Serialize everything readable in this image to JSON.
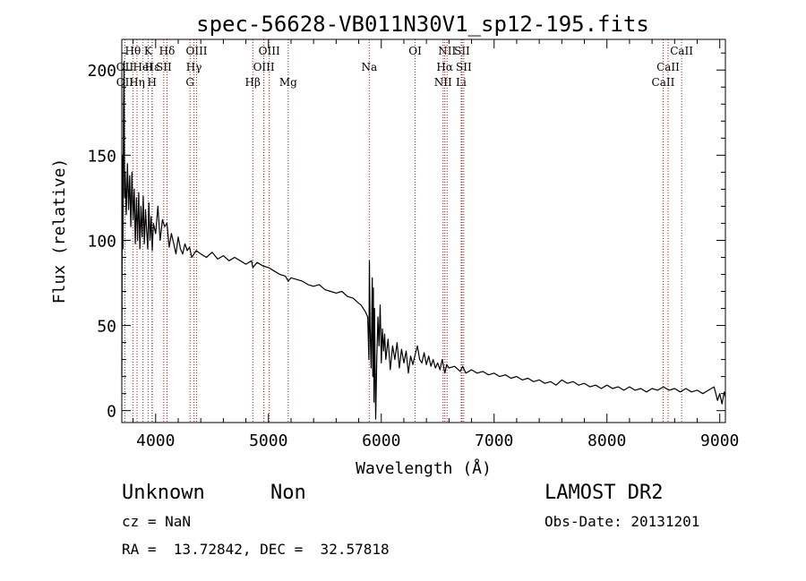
{
  "chart_data": {
    "type": "line",
    "title": "spec-56628-VB011N30V1_sp12-195.fits",
    "xlabel": "Wavelength (Å)",
    "ylabel": "Flux (relative)",
    "xlim": [
      3700,
      9050
    ],
    "ylim": [
      -7,
      218
    ],
    "xticks": [
      4000,
      5000,
      6000,
      7000,
      8000,
      9000
    ],
    "yticks": [
      0,
      50,
      100,
      150,
      200
    ],
    "grid": false,
    "series": [
      {
        "color": "#000000",
        "points": [
          [
            3700,
            20
          ],
          [
            3705,
            150
          ],
          [
            3710,
            95
          ],
          [
            3715,
            175
          ],
          [
            3720,
            205
          ],
          [
            3725,
            125
          ],
          [
            3730,
            140
          ],
          [
            3740,
            115
          ],
          [
            3750,
            145
          ],
          [
            3760,
            118
          ],
          [
            3770,
            138
          ],
          [
            3780,
            108
          ],
          [
            3790,
            140
          ],
          [
            3800,
            112
          ],
          [
            3810,
            130
          ],
          [
            3820,
            98
          ],
          [
            3830,
            125
          ],
          [
            3840,
            100
          ],
          [
            3850,
            128
          ],
          [
            3860,
            95
          ],
          [
            3870,
            120
          ],
          [
            3880,
            102
          ],
          [
            3890,
            126
          ],
          [
            3900,
            98
          ],
          [
            3910,
            118
          ],
          [
            3920,
            106
          ],
          [
            3930,
            95
          ],
          [
            3940,
            122
          ],
          [
            3950,
            100
          ],
          [
            3960,
            114
          ],
          [
            3970,
            94
          ],
          [
            3980,
            110
          ],
          [
            4000,
            104
          ],
          [
            4020,
            120
          ],
          [
            4040,
            100
          ],
          [
            4060,
            112
          ],
          [
            4080,
            108
          ],
          [
            4100,
            110
          ],
          [
            4120,
            96
          ],
          [
            4140,
            104
          ],
          [
            4160,
            98
          ],
          [
            4180,
            92
          ],
          [
            4200,
            102
          ],
          [
            4220,
            95
          ],
          [
            4240,
            92
          ],
          [
            4260,
            98
          ],
          [
            4280,
            94
          ],
          [
            4300,
            96
          ],
          [
            4320,
            90
          ],
          [
            4340,
            92
          ],
          [
            4360,
            94
          ],
          [
            4400,
            92
          ],
          [
            4450,
            90
          ],
          [
            4500,
            93
          ],
          [
            4550,
            89
          ],
          [
            4600,
            91
          ],
          [
            4650,
            88
          ],
          [
            4700,
            90
          ],
          [
            4750,
            88
          ],
          [
            4800,
            86
          ],
          [
            4850,
            88
          ],
          [
            4861,
            84
          ],
          [
            4900,
            87
          ],
          [
            4950,
            85
          ],
          [
            5000,
            84
          ],
          [
            5050,
            82
          ],
          [
            5100,
            80
          ],
          [
            5150,
            79
          ],
          [
            5175,
            76
          ],
          [
            5200,
            78
          ],
          [
            5250,
            77
          ],
          [
            5300,
            76
          ],
          [
            5350,
            74
          ],
          [
            5400,
            73
          ],
          [
            5450,
            74
          ],
          [
            5500,
            71
          ],
          [
            5550,
            70
          ],
          [
            5600,
            69
          ],
          [
            5650,
            70
          ],
          [
            5700,
            67
          ],
          [
            5750,
            66
          ],
          [
            5800,
            63
          ],
          [
            5820,
            62
          ],
          [
            5840,
            60
          ],
          [
            5860,
            58
          ],
          [
            5880,
            55
          ],
          [
            5890,
            30
          ],
          [
            5895,
            88
          ],
          [
            5900,
            50
          ],
          [
            5910,
            25
          ],
          [
            5920,
            78
          ],
          [
            5925,
            20
          ],
          [
            5930,
            72
          ],
          [
            5935,
            5
          ],
          [
            5940,
            60
          ],
          [
            5950,
            -5
          ],
          [
            5960,
            30
          ],
          [
            5970,
            55
          ],
          [
            5980,
            38
          ],
          [
            5990,
            62
          ],
          [
            6000,
            28
          ],
          [
            6010,
            48
          ],
          [
            6020,
            35
          ],
          [
            6030,
            45
          ],
          [
            6040,
            30
          ],
          [
            6060,
            42
          ],
          [
            6080,
            24
          ],
          [
            6100,
            38
          ],
          [
            6120,
            30
          ],
          [
            6140,
            40
          ],
          [
            6160,
            25
          ],
          [
            6180,
            36
          ],
          [
            6200,
            28
          ],
          [
            6220,
            35
          ],
          [
            6240,
            22
          ],
          [
            6260,
            32
          ],
          [
            6280,
            27
          ],
          [
            6300,
            33
          ],
          [
            6320,
            38
          ],
          [
            6340,
            30
          ],
          [
            6360,
            28
          ],
          [
            6380,
            34
          ],
          [
            6400,
            27
          ],
          [
            6420,
            32
          ],
          [
            6440,
            26
          ],
          [
            6460,
            30
          ],
          [
            6480,
            25
          ],
          [
            6500,
            28
          ],
          [
            6520,
            24
          ],
          [
            6540,
            30
          ],
          [
            6563,
            22
          ],
          [
            6580,
            27
          ],
          [
            6600,
            25
          ],
          [
            6650,
            26
          ],
          [
            6700,
            23
          ],
          [
            6720,
            26
          ],
          [
            6750,
            22
          ],
          [
            6800,
            24
          ],
          [
            6850,
            22
          ],
          [
            6900,
            23
          ],
          [
            6950,
            21
          ],
          [
            7000,
            22
          ],
          [
            7050,
            20
          ],
          [
            7100,
            21
          ],
          [
            7150,
            19
          ],
          [
            7200,
            20
          ],
          [
            7250,
            18
          ],
          [
            7300,
            19
          ],
          [
            7350,
            17
          ],
          [
            7400,
            18
          ],
          [
            7450,
            16
          ],
          [
            7500,
            17
          ],
          [
            7550,
            15
          ],
          [
            7600,
            18
          ],
          [
            7650,
            16
          ],
          [
            7700,
            17
          ],
          [
            7750,
            15
          ],
          [
            7800,
            16
          ],
          [
            7850,
            14
          ],
          [
            7900,
            15
          ],
          [
            7950,
            13
          ],
          [
            8000,
            15
          ],
          [
            8050,
            13
          ],
          [
            8100,
            14
          ],
          [
            8150,
            12
          ],
          [
            8200,
            14
          ],
          [
            8250,
            12
          ],
          [
            8300,
            13
          ],
          [
            8350,
            11
          ],
          [
            8400,
            13
          ],
          [
            8450,
            12
          ],
          [
            8500,
            14
          ],
          [
            8550,
            12
          ],
          [
            8600,
            13
          ],
          [
            8650,
            11
          ],
          [
            8700,
            13
          ],
          [
            8750,
            11
          ],
          [
            8800,
            12
          ],
          [
            8850,
            10
          ],
          [
            8900,
            12
          ],
          [
            8950,
            14
          ],
          [
            8980,
            6
          ],
          [
            9000,
            10
          ],
          [
            9020,
            4
          ],
          [
            9040,
            11
          ],
          [
            9050,
            8
          ]
        ]
      }
    ],
    "line_markers": [
      {
        "label": "Hθ",
        "wl": 3798,
        "row": 0
      },
      {
        "label": "OII",
        "wl": 3727,
        "row": 1
      },
      {
        "label": "OII",
        "wl": 3727,
        "row": 2
      },
      {
        "label": "Hε",
        "wl": 3970,
        "row": 1
      },
      {
        "label": "Hη",
        "wl": 3835,
        "row": 2
      },
      {
        "label": "K",
        "wl": 3933,
        "row": 0
      },
      {
        "label": "HeI",
        "wl": 3888,
        "row": 1
      },
      {
        "label": "H",
        "wl": 3968,
        "row": 2
      },
      {
        "label": "Hδ",
        "wl": 4101,
        "row": 0
      },
      {
        "label": "SII",
        "wl": 4072,
        "row": 1
      },
      {
        "label": "OIII",
        "wl": 4363,
        "row": 0
      },
      {
        "label": "Hγ",
        "wl": 4340,
        "row": 1
      },
      {
        "label": "G",
        "wl": 4305,
        "row": 2
      },
      {
        "label": "Hβ",
        "wl": 4861,
        "row": 2
      },
      {
        "label": "OIII",
        "wl": 5007,
        "row": 0
      },
      {
        "label": "OIII",
        "wl": 4959,
        "row": 1
      },
      {
        "label": "Mg",
        "wl": 5175,
        "row": 2
      },
      {
        "label": "Na",
        "wl": 5893,
        "row": 1
      },
      {
        "label": "OI",
        "wl": 6300,
        "row": 0
      },
      {
        "label": "NII",
        "wl": 6583,
        "row": 0
      },
      {
        "label": "SII",
        "wl": 6716,
        "row": 0
      },
      {
        "label": "Hα",
        "wl": 6563,
        "row": 1
      },
      {
        "label": "SII",
        "wl": 6731,
        "row": 1
      },
      {
        "label": "NII",
        "wl": 6548,
        "row": 2
      },
      {
        "label": "Li",
        "wl": 6708,
        "row": 2
      },
      {
        "label": "CaII",
        "wl": 8662,
        "row": 0
      },
      {
        "label": "CaII",
        "wl": 8542,
        "row": 1
      },
      {
        "label": "CaII",
        "wl": 8498,
        "row": 2
      }
    ],
    "marker_color": "#a02020"
  },
  "footer": {
    "object_class": "Unknown",
    "subclass": "Non",
    "survey": "LAMOST DR2",
    "cz_text": "cz = NaN",
    "obs_date": "Obs-Date: 20131201",
    "coords": "RA =  13.72842, DEC =  32.57818"
  }
}
